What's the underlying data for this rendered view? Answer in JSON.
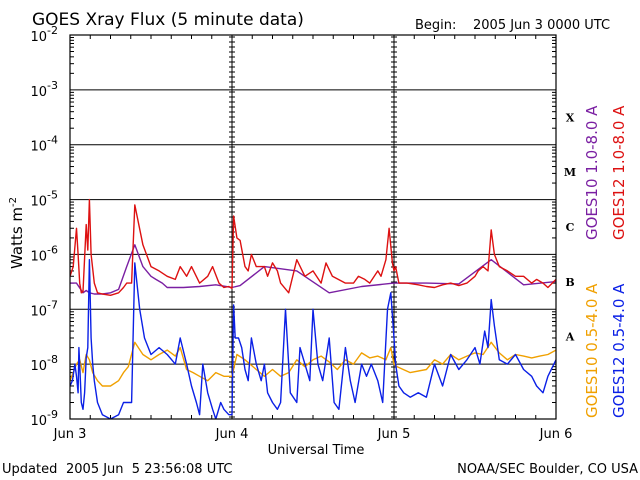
{
  "header": {
    "title": "GOES Xray Flux (5 minute data)",
    "begin_label": "Begin:",
    "begin_value": "2005 Jun 3 0000 UTC"
  },
  "footer": {
    "updated_label": "Updated",
    "updated_value": "2005 Jun  5 23:56:08 UTC",
    "credit": "NOAA/SEC Boulder, CO USA"
  },
  "colors": {
    "goes10_long": "#7a1fa2",
    "goes12_long": "#dd1111",
    "goes10_short": "#f0a000",
    "goes12_short": "#0b20e6",
    "grid": "#000000"
  },
  "chart_data": {
    "type": "line",
    "title": "GOES Xray Flux (5 minute data)",
    "xlabel": "Universal Time",
    "ylabel": "Watts m",
    "ylabel_sup": "-2",
    "yscale": "log",
    "ylim": [
      1e-09,
      0.01
    ],
    "y_tick_base": "10",
    "y_ticks": [
      {
        "exp": "-2",
        "value": 0.01
      },
      {
        "exp": "-3",
        "value": 0.001
      },
      {
        "exp": "-4",
        "value": 0.0001
      },
      {
        "exp": "-5",
        "value": 1e-05
      },
      {
        "exp": "-6",
        "value": 1e-06
      },
      {
        "exp": "-7",
        "value": 1e-07
      },
      {
        "exp": "-8",
        "value": 1e-08
      },
      {
        "exp": "-9",
        "value": 1e-09
      }
    ],
    "x_unit": "days since 2005 Jun 3 0000 UTC",
    "xlim": [
      0,
      3
    ],
    "x_ticks": [
      {
        "label": "Jun 3",
        "value": 0
      },
      {
        "label": "Jun 4",
        "value": 1
      },
      {
        "label": "Jun 5",
        "value": 2
      },
      {
        "label": "Jun 6",
        "value": 3
      }
    ],
    "flare_classes": [
      {
        "label": "X",
        "exp": -4
      },
      {
        "label": "M",
        "exp": -5
      },
      {
        "label": "C",
        "exp": -6
      },
      {
        "label": "B",
        "exp": -7
      },
      {
        "label": "A",
        "exp": -8
      }
    ],
    "legend": [
      {
        "name": "GOES10 1.0-8.0 A",
        "color": "#7a1fa2"
      },
      {
        "name": "GOES12 1.0-8.0 A",
        "color": "#dd1111"
      },
      {
        "name": "GOES10 0.5-4.0 A",
        "color": "#f0a000"
      },
      {
        "name": "GOES12 0.5-4.0 A",
        "color": "#0b20e6"
      }
    ],
    "series": [
      {
        "name": "GOES10 1.0-8.0 A",
        "color": "#7a1fa2",
        "x": [
          0,
          0.04,
          0.08,
          0.1,
          0.12,
          0.15,
          0.2,
          0.25,
          0.3,
          0.35,
          0.4,
          0.45,
          0.5,
          0.53,
          0.57,
          0.6,
          0.7,
          0.8,
          0.9,
          1.0,
          1.05,
          1.2,
          1.4,
          1.6,
          1.8,
          2.0,
          2.2,
          2.4,
          2.6,
          2.8,
          3.0
        ],
        "y": [
          3e-07,
          3e-07,
          2e-07,
          2.2e-07,
          2e-07,
          1.9e-07,
          1.9e-07,
          2e-07,
          2.3e-07,
          6e-07,
          1.5e-06,
          6e-07,
          4e-07,
          3.5e-07,
          3e-07,
          2.5e-07,
          2.5e-07,
          2.6e-07,
          2.8e-07,
          2.5e-07,
          2.7e-07,
          6e-07,
          5e-07,
          2e-07,
          2.6e-07,
          3e-07,
          3e-07,
          2.9e-07,
          8e-07,
          2.8e-07,
          3.2e-07
        ]
      },
      {
        "name": "GOES12 1.0-8.0 A",
        "color": "#dd1111",
        "x": [
          0,
          0.02,
          0.04,
          0.05,
          0.06,
          0.07,
          0.08,
          0.1,
          0.11,
          0.12,
          0.13,
          0.15,
          0.17,
          0.2,
          0.25,
          0.3,
          0.33,
          0.35,
          0.38,
          0.4,
          0.45,
          0.5,
          0.55,
          0.6,
          0.65,
          0.68,
          0.72,
          0.75,
          0.8,
          0.85,
          0.88,
          0.92,
          0.95,
          0.98,
          1.0,
          1.01,
          1.03,
          1.05,
          1.08,
          1.1,
          1.12,
          1.15,
          1.2,
          1.22,
          1.25,
          1.28,
          1.3,
          1.35,
          1.4,
          1.45,
          1.5,
          1.55,
          1.58,
          1.62,
          1.7,
          1.75,
          1.78,
          1.82,
          1.85,
          1.9,
          1.92,
          1.95,
          1.97,
          1.99,
          2.0,
          2.01,
          2.03,
          2.08,
          2.15,
          2.2,
          2.25,
          2.3,
          2.35,
          2.4,
          2.45,
          2.5,
          2.52,
          2.55,
          2.58,
          2.6,
          2.62,
          2.65,
          2.7,
          2.75,
          2.8,
          2.85,
          2.88,
          2.92,
          2.95,
          3.0
        ],
        "y": [
          4e-07,
          6e-07,
          3e-06,
          1e-06,
          3e-07,
          2e-07,
          2.1e-07,
          3.5e-06,
          1.2e-06,
          1e-05,
          1e-06,
          3e-07,
          2e-07,
          1.9e-07,
          1.8e-07,
          2e-07,
          2.5e-07,
          3e-07,
          3e-07,
          8e-06,
          1.5e-06,
          6e-07,
          5e-07,
          4e-07,
          3.5e-07,
          6e-07,
          4e-07,
          6e-07,
          3e-07,
          4e-07,
          6e-07,
          3e-07,
          2.5e-07,
          2.6e-07,
          2.4e-07,
          5e-06,
          2e-06,
          1.8e-06,
          6e-07,
          5e-07,
          1e-06,
          6e-07,
          6e-07,
          4e-07,
          7e-07,
          5e-07,
          3e-07,
          2e-07,
          8e-07,
          4e-07,
          5e-07,
          3e-07,
          7e-07,
          4e-07,
          3e-07,
          3e-07,
          4e-07,
          3.5e-07,
          3e-07,
          5e-07,
          4e-07,
          8e-07,
          3e-06,
          7e-07,
          5e-07,
          6e-07,
          3e-07,
          3e-07,
          2.8e-07,
          2.6e-07,
          2.5e-07,
          2.8e-07,
          3e-07,
          2.7e-07,
          3e-07,
          4e-07,
          5e-07,
          6e-07,
          5e-07,
          2.8e-06,
          1e-06,
          6e-07,
          5e-07,
          4e-07,
          4e-07,
          3e-07,
          3.5e-07,
          3e-07,
          2.5e-07,
          3.5e-07
        ]
      },
      {
        "name": "GOES10 0.5-4.0 A",
        "color": "#f0a000",
        "x": [
          0,
          0.02,
          0.04,
          0.06,
          0.08,
          0.1,
          0.12,
          0.14,
          0.17,
          0.2,
          0.25,
          0.3,
          0.33,
          0.36,
          0.4,
          0.45,
          0.5,
          0.55,
          0.6,
          0.65,
          0.68,
          0.72,
          0.76,
          0.8,
          0.85,
          0.9,
          0.95,
          1.0,
          1.03,
          1.08,
          1.15,
          1.2,
          1.25,
          1.3,
          1.35,
          1.4,
          1.45,
          1.5,
          1.55,
          1.6,
          1.65,
          1.7,
          1.75,
          1.8,
          1.85,
          1.9,
          1.95,
          1.98,
          2.0,
          2.02,
          2.1,
          2.2,
          2.25,
          2.3,
          2.35,
          2.4,
          2.45,
          2.5,
          2.55,
          2.6,
          2.65,
          2.7,
          2.75,
          2.8,
          2.85,
          2.9,
          2.95,
          3.0
        ],
        "y": [
          5e-09,
          7e-09,
          1e-08,
          1.2e-08,
          7e-09,
          1.5e-08,
          1.2e-08,
          7e-09,
          5e-09,
          4e-09,
          4e-09,
          5e-09,
          7e-09,
          9e-09,
          2.5e-08,
          1.5e-08,
          1.2e-08,
          1.5e-08,
          1.8e-08,
          1.4e-08,
          2e-08,
          8e-09,
          7e-09,
          6e-09,
          5e-09,
          7e-09,
          6e-09,
          6e-09,
          1.5e-08,
          1.2e-08,
          8e-09,
          6e-09,
          8e-09,
          6e-09,
          7e-09,
          1.2e-08,
          9e-09,
          1.2e-08,
          1.4e-08,
          1.1e-08,
          8e-09,
          1.2e-08,
          1e-08,
          1.6e-08,
          1.3e-08,
          1.4e-08,
          1.2e-08,
          2e-08,
          1e-08,
          9e-09,
          7e-09,
          8e-09,
          1.2e-08,
          1e-08,
          1.5e-08,
          1.2e-08,
          1.4e-08,
          1.6e-08,
          1.5e-08,
          2.5e-08,
          1.6e-08,
          1.2e-08,
          1.5e-08,
          1.4e-08,
          1.3e-08,
          1.4e-08,
          1.5e-08,
          1.8e-08
        ]
      },
      {
        "name": "GOES12 0.5-4.0 A",
        "color": "#0b20e6",
        "x": [
          0,
          0.015,
          0.03,
          0.04,
          0.05,
          0.055,
          0.06,
          0.07,
          0.08,
          0.09,
          0.1,
          0.11,
          0.12,
          0.13,
          0.14,
          0.15,
          0.17,
          0.2,
          0.25,
          0.3,
          0.33,
          0.35,
          0.38,
          0.4,
          0.43,
          0.46,
          0.5,
          0.55,
          0.6,
          0.65,
          0.68,
          0.72,
          0.75,
          0.78,
          0.8,
          0.82,
          0.85,
          0.88,
          0.9,
          0.93,
          0.95,
          0.98,
          1.0,
          1.01,
          1.02,
          1.04,
          1.06,
          1.08,
          1.1,
          1.12,
          1.15,
          1.18,
          1.2,
          1.22,
          1.25,
          1.28,
          1.3,
          1.33,
          1.36,
          1.4,
          1.42,
          1.45,
          1.48,
          1.5,
          1.53,
          1.56,
          1.6,
          1.63,
          1.66,
          1.7,
          1.73,
          1.76,
          1.8,
          1.83,
          1.86,
          1.9,
          1.93,
          1.96,
          1.98,
          2.0,
          2.01,
          2.03,
          2.06,
          2.1,
          2.15,
          2.2,
          2.25,
          2.3,
          2.35,
          2.4,
          2.45,
          2.5,
          2.53,
          2.56,
          2.58,
          2.6,
          2.62,
          2.65,
          2.7,
          2.75,
          2.8,
          2.85,
          2.88,
          2.92,
          2.95,
          3.0
        ],
        "y": [
          4e-09,
          5e-09,
          1e-08,
          6e-09,
          3e-09,
          2e-08,
          1e-08,
          2e-09,
          1.5e-09,
          3e-09,
          1.3e-08,
          2e-08,
          8e-07,
          3e-08,
          1e-08,
          5e-09,
          2e-09,
          1.2e-09,
          1e-09,
          1.2e-09,
          2e-09,
          2e-09,
          2e-09,
          7e-07,
          1e-07,
          3e-08,
          1.5e-08,
          2e-08,
          1.5e-08,
          1e-08,
          3e-08,
          1e-08,
          4e-09,
          2e-09,
          1.2e-09,
          1e-08,
          3e-09,
          1.5e-09,
          1e-09,
          2e-09,
          1.5e-09,
          1.2e-09,
          1.2e-09,
          1.2e-07,
          3e-08,
          3e-08,
          2e-08,
          8e-09,
          5e-09,
          3e-08,
          1e-08,
          5e-09,
          1e-08,
          3e-09,
          2e-09,
          1.5e-09,
          2e-09,
          1e-07,
          3e-09,
          2e-09,
          2e-08,
          1e-08,
          5e-09,
          1e-07,
          1e-08,
          5e-09,
          3e-08,
          2e-09,
          1.5e-09,
          2e-08,
          5e-09,
          2e-09,
          1e-08,
          6e-09,
          1e-08,
          5e-09,
          2e-09,
          1e-07,
          2e-07,
          3e-08,
          1e-08,
          4e-09,
          3e-09,
          2.5e-09,
          3e-09,
          2.5e-09,
          1e-08,
          4e-09,
          1.5e-08,
          8e-09,
          1.2e-08,
          2e-08,
          1e-08,
          4e-08,
          2e-08,
          1.5e-07,
          5e-08,
          1.2e-08,
          1e-08,
          1.5e-08,
          8e-09,
          6e-09,
          4e-09,
          3e-09,
          6e-09,
          1.2e-08
        ]
      }
    ]
  }
}
